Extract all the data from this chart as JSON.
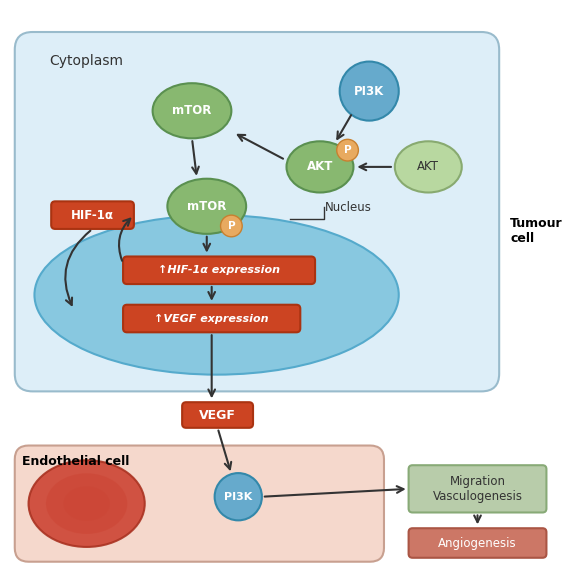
{
  "bg_color": "#ffffff",
  "tumour_cell_bg": "#ddeef8",
  "tumour_cell_border": "#99bbcc",
  "endothelial_cell_bg": "#f5d8cc",
  "endothelial_cell_border": "#c8a090",
  "nucleus_fill": "#88c8e0",
  "nucleus_edge": "#55aacc",
  "green_ellipse_fill": "#88b870",
  "green_ellipse_edge": "#5a9050",
  "green_ellipse_fill_light": "#b8d8a0",
  "green_ellipse_edge_light": "#88aa70",
  "blue_circle_fill": "#66aacc",
  "blue_circle_edge": "#3388aa",
  "orange_circle_fill": "#e8aa60",
  "orange_circle_edge": "#c88030",
  "red_box_fill": "#cc4422",
  "red_box_edge": "#aa3311",
  "green_box_fill": "#b8ccaa",
  "green_box_edge": "#88aa77",
  "pink_red_box_fill": "#cc7766",
  "pink_red_box_edge": "#aa5544",
  "red_nucleus_fill": "#cc4433",
  "red_nucleus_edge": "#aa3322",
  "text_white": "#ffffff",
  "text_dark": "#333333",
  "arrow_color": "#333333",
  "label_cytoplasm": "Cytoplasm",
  "label_nucleus": "Nucleus",
  "label_tumour": "Tumour\ncell",
  "label_endothelial": "Endothelial cell",
  "label_mTOR1": "mTOR",
  "label_mTOR2": "mTOR",
  "label_AKT_active": "AKT",
  "label_AKT_inactive": "AKT",
  "label_PI3K_top": "PI3K",
  "label_PI3K_bottom": "PI3K",
  "label_P_akt": "P",
  "label_P_mtor": "P",
  "label_HIF1a_box": "HIF-1α",
  "label_HIF1a_expr": "↑HIF-1α expression",
  "label_VEGF_expr": "↑VEGF expression",
  "label_VEGF": "VEGF",
  "label_migration": "Migration\nVasculogenesis",
  "label_angiogenesis": "Angiogenesis"
}
